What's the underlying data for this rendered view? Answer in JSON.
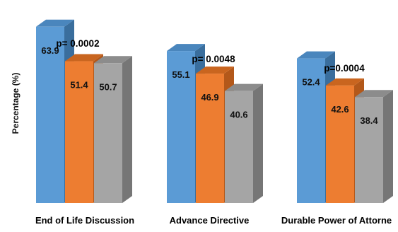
{
  "chart_data": {
    "type": "bar",
    "style": "3d-clustered",
    "title": "",
    "xlabel": "",
    "ylabel": "Percentage (%)",
    "ylim": [
      0,
      100
    ],
    "grid": false,
    "legend": "none",
    "categories": [
      "End of Life Discussion",
      "Advance Directive",
      "Durable Power of Attorne"
    ],
    "series": [
      {
        "color": "#5b9bd5",
        "top_color": "#4a86bd",
        "side_color": "#3a6e9d",
        "values": [
          63.9,
          55.1,
          52.4
        ]
      },
      {
        "color": "#ed7d31",
        "top_color": "#c9651f",
        "side_color": "#b3581a",
        "values": [
          51.4,
          46.9,
          42.6
        ]
      },
      {
        "color": "#a5a5a5",
        "top_color": "#8c8c8c",
        "side_color": "#767676",
        "values": [
          50.7,
          40.6,
          38.4
        ]
      }
    ],
    "annotations": [
      "p= 0.0002",
      "p= 0.0048",
      "p=0.0004"
    ]
  }
}
